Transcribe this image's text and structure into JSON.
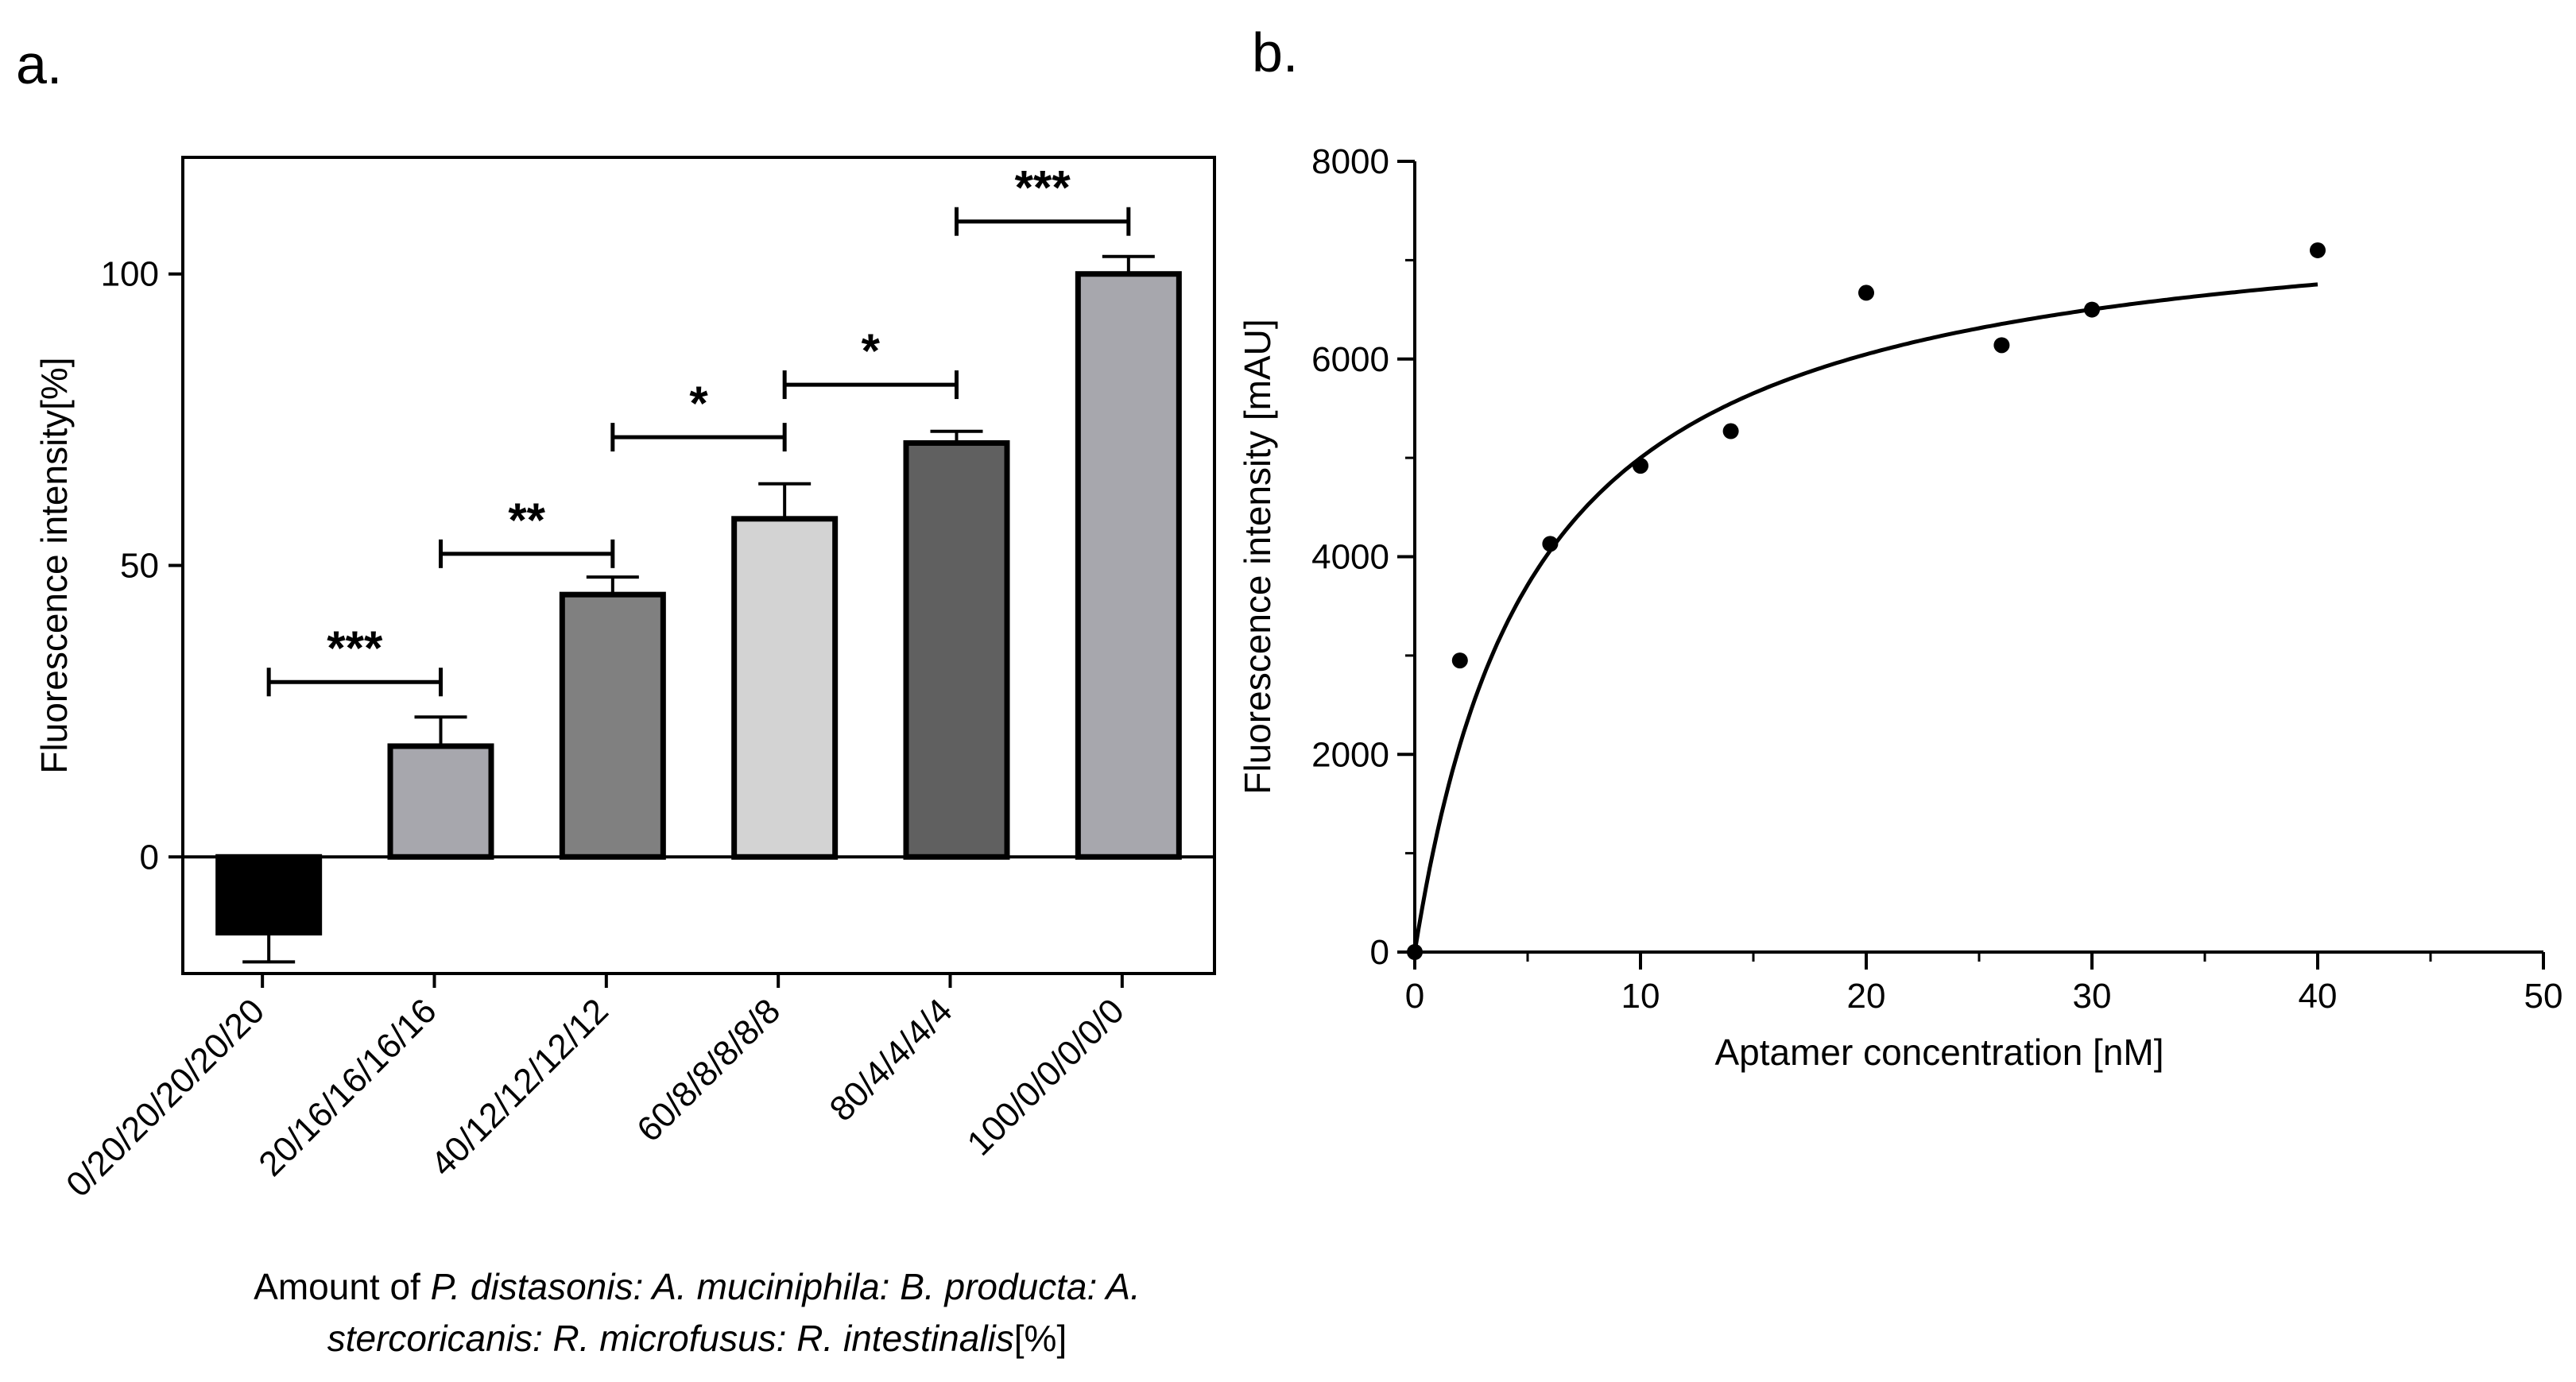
{
  "panels": {
    "a": {
      "label": "a."
    },
    "b": {
      "label": "b."
    }
  },
  "chart_data": [
    {
      "type": "bar",
      "panel": "a.",
      "categories": [
        "0/20/20/20/20/20",
        "20/16/16/16/16",
        "40/12/12/12/12",
        "60/8/8/8/8/8",
        "80/4/4/4/4",
        "100/0/0/0/0/0"
      ],
      "values": [
        -13,
        19,
        45,
        58,
        71,
        100
      ],
      "errors": [
        5,
        5,
        3,
        6,
        2,
        3
      ],
      "colors": [
        "#000000",
        "#a7a7ad",
        "#808080",
        "#d3d3d3",
        "#606060",
        "#a7a7ad"
      ],
      "ylabel": "Fluorescence intensity[%]",
      "ylim": [
        -20,
        120
      ],
      "yticks": [
        0,
        50,
        100
      ],
      "xlabel_parts": [
        [
          {
            "text": "Amount of ",
            "italic": false
          },
          {
            "text": "P. distasonis: A. muciniphila: B. producta: A.",
            "italic": true
          }
        ],
        [
          {
            "text": "stercoricanis: R. microfusus: R. intestinalis",
            "italic": true
          },
          {
            "text": "[%]",
            "italic": false
          }
        ]
      ],
      "significance": [
        {
          "from": 0,
          "to": 1,
          "label": "***",
          "y": 30
        },
        {
          "from": 1,
          "to": 2,
          "label": "**",
          "y": 52
        },
        {
          "from": 2,
          "to": 3,
          "label": "*",
          "y": 72
        },
        {
          "from": 3,
          "to": 4,
          "label": "*",
          "y": 81
        },
        {
          "from": 4,
          "to": 5,
          "label": "***",
          "y": 109
        }
      ]
    },
    {
      "type": "scatter",
      "panel": "b.",
      "x": [
        0,
        2,
        6,
        10,
        14,
        20,
        26,
        30,
        40
      ],
      "y": [
        0,
        2950,
        4130,
        4920,
        5270,
        6670,
        6140,
        6500,
        7100
      ],
      "fit": {
        "model": "one-site binding",
        "Bmax": 7650,
        "Kd": 5.3,
        "x_range": [
          0,
          40
        ]
      },
      "xlabel": "Aptamer concentration [nM]",
      "ylabel": "Fluorescence intensity [mAU]",
      "xlim": [
        0,
        50
      ],
      "ylim": [
        0,
        8000
      ],
      "xticks": [
        0,
        10,
        20,
        30,
        40,
        50
      ],
      "yticks": [
        0,
        2000,
        4000,
        6000,
        8000
      ]
    }
  ]
}
